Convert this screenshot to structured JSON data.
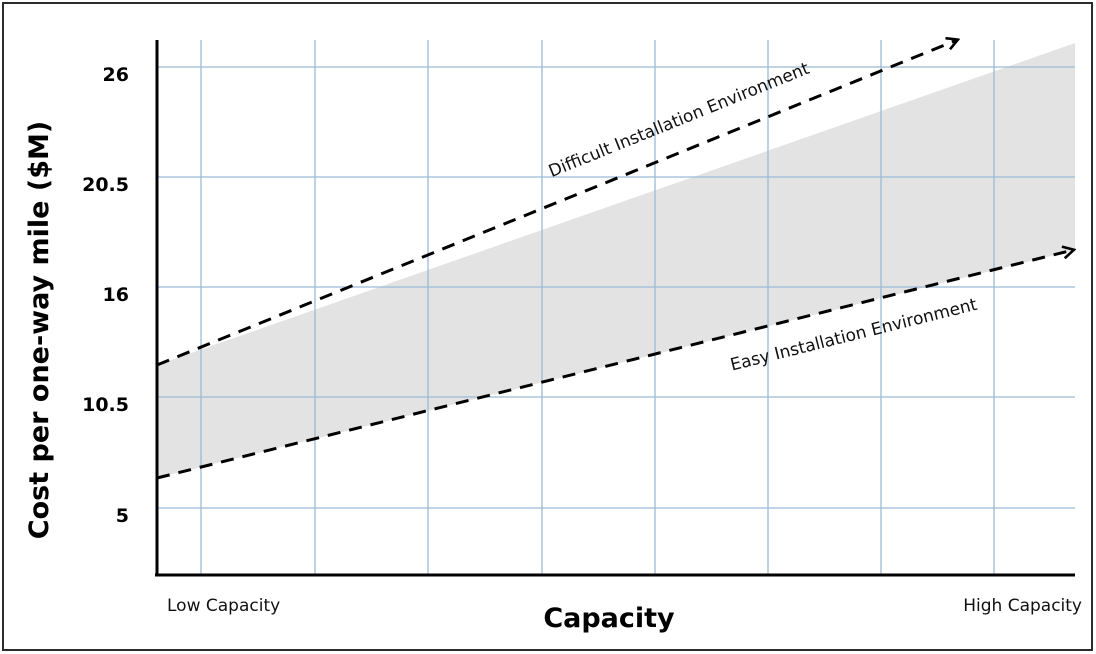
{
  "chart_data": {
    "type": "area",
    "xlabel": "Capacity",
    "ylabel": "Cost per one-way mile ($M)",
    "y_ticks": [
      "5",
      "10.5",
      "16",
      "20.5",
      "26"
    ],
    "x_categories": [
      "Low Capacity",
      "High Capacity"
    ],
    "grid": true,
    "colors": {
      "band_fill": "#e3e3e3",
      "grid": "#9bbad6",
      "axis": "#000000",
      "line": "#000000"
    },
    "series": [
      {
        "name": "Difficult Installation Environment",
        "line_style": "dashed-arrow",
        "start": [
          0,
          11.7
        ],
        "end": [
          1.0,
          27.2
        ]
      },
      {
        "name": "Easy Installation Environment",
        "line_style": "dashed-arrow",
        "start": [
          0,
          6.5
        ],
        "end": [
          1.0,
          18.2
        ]
      }
    ]
  }
}
